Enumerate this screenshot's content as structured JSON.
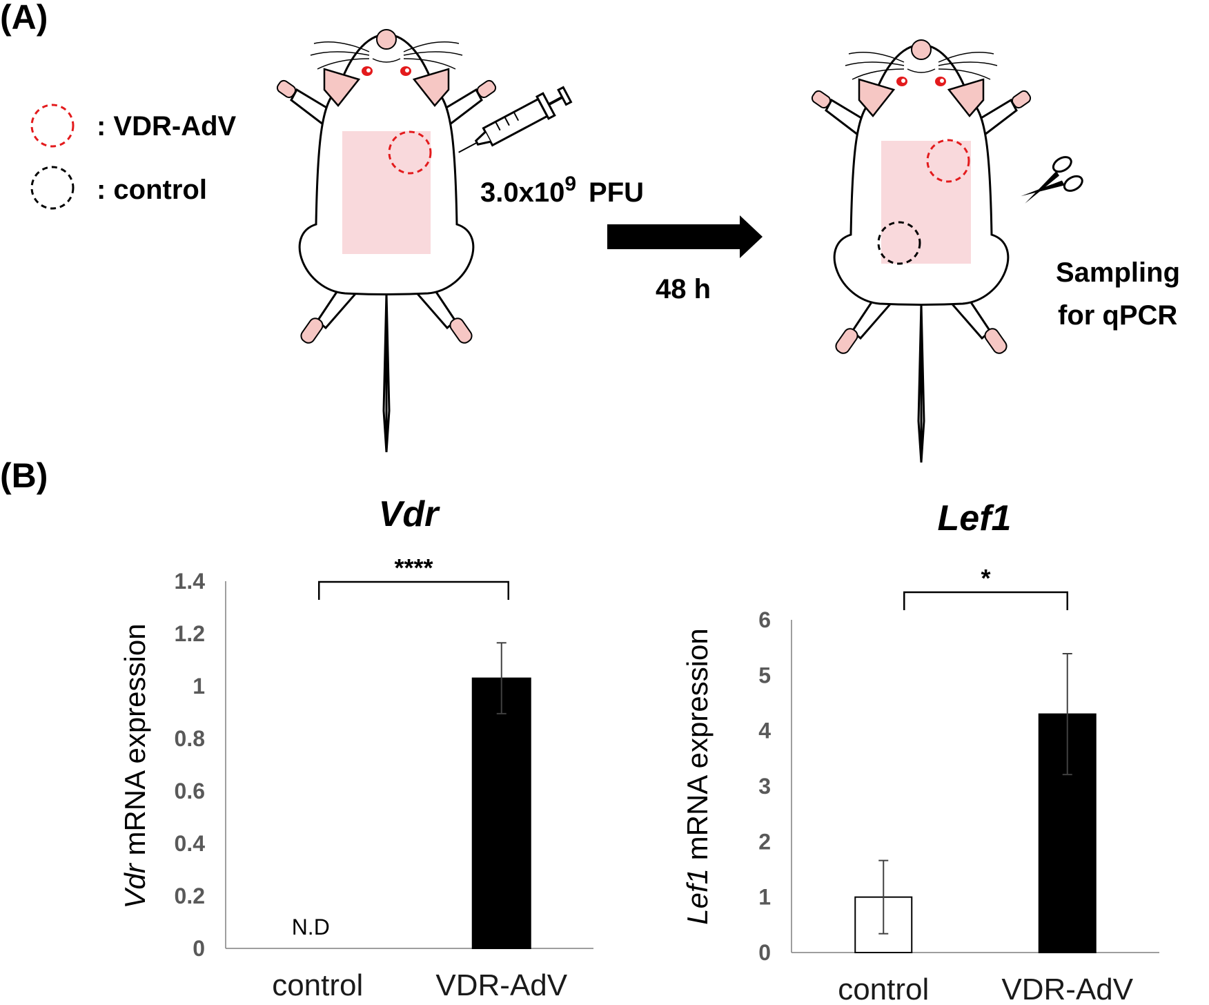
{
  "panels": {
    "a_label": "(A)",
    "b_label": "(B)"
  },
  "legend": [
    {
      "label": ": VDR-AdV",
      "color": "#e31a1c"
    },
    {
      "label": ": control",
      "color": "#000000"
    }
  ],
  "schematic": {
    "dose_text": "3.0x10",
    "dose_exp": "9",
    "dose_unit": "PFU",
    "time_text": "48 h",
    "sampling_line1": "Sampling",
    "sampling_line2": "for qPCR",
    "icons": [
      "mouse-icon",
      "syringe-icon",
      "arrow-right-icon",
      "scissors-icon"
    ],
    "skin_color": "#f9d9dc",
    "ear_color": "#f6c7c4"
  },
  "chart_data": [
    {
      "type": "bar",
      "title": "Vdr",
      "ylabel_italic": "Vdr",
      "ylabel_rest": " mRNA expression",
      "xlabel": "",
      "categories": [
        "control",
        "VDR-AdV"
      ],
      "values": [
        0,
        1.03
      ],
      "errors": [
        0,
        0.135
      ],
      "bar_fill": [
        "#ffffff",
        "#000000"
      ],
      "bar_annotations": [
        "N.D",
        ""
      ],
      "ylim": [
        0,
        1.4
      ],
      "yticks": [
        0,
        0.2,
        0.4,
        0.6,
        0.8,
        1,
        1.2,
        1.4
      ],
      "ytick_labels": [
        "0",
        "0.2",
        "0.4",
        "0.6",
        "0.8",
        "1",
        "1.2",
        "1.4"
      ],
      "significance": "****",
      "grid": false
    },
    {
      "type": "bar",
      "title": "Lef1",
      "ylabel_italic": "Lef1",
      "ylabel_rest": " mRNA expression",
      "xlabel": "",
      "categories": [
        "control",
        "VDR-AdV"
      ],
      "values": [
        1.0,
        4.3
      ],
      "errors": [
        0.66,
        1.09
      ],
      "bar_fill": [
        "#ffffff",
        "#000000"
      ],
      "bar_annotations": [
        "",
        ""
      ],
      "ylim": [
        0,
        6
      ],
      "yticks": [
        0,
        1,
        2,
        3,
        4,
        5,
        6
      ],
      "ytick_labels": [
        "0",
        "1",
        "2",
        "3",
        "4",
        "5",
        "6"
      ],
      "significance": "*",
      "grid": false
    }
  ]
}
